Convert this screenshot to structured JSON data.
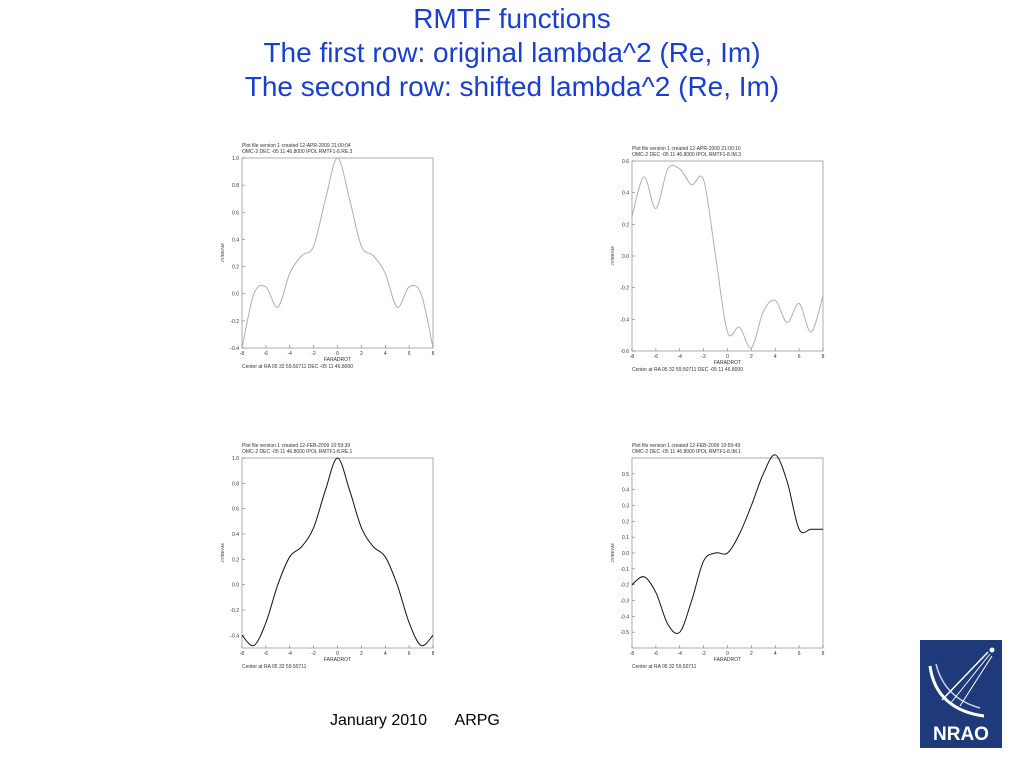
{
  "slide": {
    "title_lines": [
      "RMTF functions",
      "The first row: original lambda^2  (Re, Im)",
      "The second row: shifted lambda^2  (Re, Im)"
    ],
    "footer_date": "January 2010",
    "footer_org": "ARPG",
    "logo_text": "NRAO",
    "title_color": "#1a3fd0"
  },
  "chart_data": [
    {
      "type": "line",
      "header_lines": [
        "Plot file version 1  created 12-APR-2009 21:00:04",
        "OMC-2  DEC -05 11 46.8000  IPOL  RMTF1-8.RE.3"
      ],
      "xlabel": "FARADROT",
      "ylabel": "JY/BEAM",
      "footer_text": "Center at RA 05 32 59.50711  DEC -05 11 46.8000",
      "xlim": [
        -8,
        8
      ],
      "ylim": [
        -0.4,
        1.0
      ],
      "xticks": [
        -8,
        -6,
        -4,
        -2,
        0,
        2,
        4,
        6,
        8
      ],
      "yticks": [
        -0.4,
        -0.2,
        0.0,
        0.2,
        0.4,
        0.6,
        0.8,
        1.0
      ],
      "xtick_labels": [
        "-8",
        "-6",
        "-4",
        "-2",
        "0",
        "2",
        "4",
        "6",
        "8"
      ],
      "ytick_labels": [
        "-0.4",
        "-0.2",
        "0.0",
        "0.2",
        "0.4",
        "0.6",
        "0.8",
        "1.0"
      ],
      "line_color": "#b0b0b0",
      "x": [
        -8.0,
        -7.0,
        -6.0,
        -5.0,
        -4.0,
        -3.0,
        -2.0,
        -1.0,
        0.0,
        1.0,
        2.0,
        3.0,
        4.0,
        5.0,
        6.0,
        7.0,
        8.0
      ],
      "y": [
        -0.4,
        0.0,
        0.05,
        -0.1,
        0.15,
        0.28,
        0.35,
        0.7,
        1.0,
        0.7,
        0.35,
        0.28,
        0.15,
        -0.1,
        0.05,
        0.0,
        -0.4
      ]
    },
    {
      "type": "line",
      "header_lines": [
        "Plot file version 1  created 12-APR-2009 21:00:10",
        "OMC-2  DEC -05 11 46.8000  IPOL  RMTF1-8.IM.3"
      ],
      "xlabel": "FARADROT",
      "ylabel": "JY/BEAM",
      "footer_text": "Center at RA 05 32 59.50711  DEC -05 11 46.8000",
      "xlim": [
        -8,
        8
      ],
      "ylim": [
        -0.6,
        0.6
      ],
      "xticks": [
        -8,
        -6,
        -4,
        -2,
        0,
        2,
        4,
        6,
        8
      ],
      "yticks": [
        -0.6,
        -0.4,
        -0.2,
        0.0,
        0.2,
        0.4,
        0.6
      ],
      "xtick_labels": [
        "-8",
        "-6",
        "-4",
        "-2",
        "0",
        "2",
        "4",
        "6",
        "8"
      ],
      "ytick_labels": [
        "-0.6",
        "-0.4",
        "-0.2",
        "0.0",
        "0.2",
        "0.4",
        "0.6"
      ],
      "line_color": "#b0b0b0",
      "x": [
        -8.0,
        -7.0,
        -6.0,
        -5.0,
        -4.0,
        -3.0,
        -2.0,
        -1.0,
        0.0,
        1.0,
        2.0,
        3.0,
        4.0,
        5.0,
        6.0,
        7.0,
        8.0
      ],
      "y": [
        0.25,
        0.5,
        0.3,
        0.55,
        0.55,
        0.45,
        0.48,
        0.0,
        -0.48,
        -0.45,
        -0.58,
        -0.35,
        -0.28,
        -0.42,
        -0.3,
        -0.48,
        -0.25
      ]
    },
    {
      "type": "line",
      "header_lines": [
        "Plot file version 1  created 12-FEB-2009 10:59:39",
        "OMC-2  DEC -05 11 46.8000  IPOL  RMTF1-8.RE.1"
      ],
      "xlabel": "FARADROT",
      "ylabel": "JY/BEAM",
      "footer_text": "Center at RA 05 32 59.50711",
      "xlim": [
        -8,
        8
      ],
      "ylim": [
        -0.5,
        1.0
      ],
      "xticks": [
        -8,
        -6,
        -4,
        -2,
        0,
        2,
        4,
        6,
        8
      ],
      "yticks": [
        -0.4,
        -0.2,
        0.0,
        0.2,
        0.4,
        0.6,
        0.8,
        1.0
      ],
      "xtick_labels": [
        "-8",
        "-6",
        "-4",
        "-2",
        "0",
        "2",
        "4",
        "6",
        "8"
      ],
      "ytick_labels": [
        "-0.4",
        "-0.2",
        "0.0",
        "0.2",
        "0.4",
        "0.6",
        "0.8",
        "1.0"
      ],
      "line_color": "#111111",
      "x": [
        -8.0,
        -7.0,
        -6.0,
        -5.0,
        -4.0,
        -3.0,
        -2.0,
        -1.0,
        0.0,
        1.0,
        2.0,
        3.0,
        4.0,
        5.0,
        6.0,
        7.0,
        8.0
      ],
      "y": [
        -0.4,
        -0.48,
        -0.3,
        0.0,
        0.22,
        0.3,
        0.45,
        0.75,
        1.0,
        0.75,
        0.45,
        0.3,
        0.22,
        0.0,
        -0.3,
        -0.48,
        -0.4
      ]
    },
    {
      "type": "line",
      "header_lines": [
        "Plot file version 1  created 12-FEB-2009 10:59:49",
        "OMC-2  DEC -05 11 46.8000  IPOL  RMTF1-8.IM.1"
      ],
      "xlabel": "FARADROT",
      "ylabel": "JY/BEAM",
      "footer_text": "Center at RA 05 32 59.50711",
      "xlim": [
        -8,
        8
      ],
      "ylim": [
        -0.6,
        0.6
      ],
      "xticks": [
        -8,
        -6,
        -4,
        -2,
        0,
        2,
        4,
        6,
        8
      ],
      "yticks": [
        -0.5,
        -0.4,
        -0.3,
        -0.2,
        -0.1,
        0.0,
        0.1,
        0.2,
        0.3,
        0.4,
        0.5
      ],
      "xtick_labels": [
        "-8",
        "-6",
        "-4",
        "-2",
        "0",
        "2",
        "4",
        "6",
        "8"
      ],
      "ytick_labels": [
        "-0.5",
        "-0.4",
        "-0.3",
        "-0.2",
        "-0.1",
        "0.0",
        "0.1",
        "0.2",
        "0.3",
        "0.4",
        "0.5"
      ],
      "line_color": "#111111",
      "x": [
        -8.0,
        -7.0,
        -6.0,
        -5.0,
        -4.0,
        -3.0,
        -2.0,
        -1.0,
        0.0,
        1.0,
        2.0,
        3.0,
        4.0,
        5.0,
        6.0,
        7.0,
        8.0
      ],
      "y": [
        -0.2,
        -0.15,
        -0.25,
        -0.45,
        -0.5,
        -0.3,
        -0.05,
        0.0,
        0.0,
        0.12,
        0.3,
        0.5,
        0.62,
        0.45,
        0.15,
        0.15,
        0.15
      ]
    }
  ]
}
